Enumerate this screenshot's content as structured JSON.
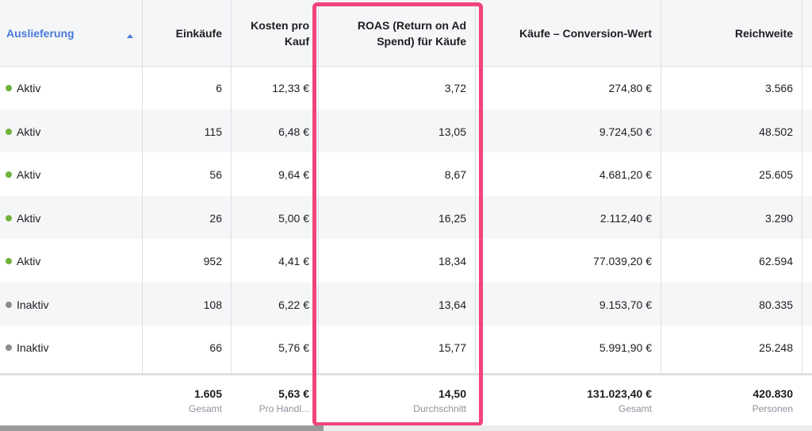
{
  "colors": {
    "active": "#6fb23a",
    "inactive": "#8d8d8d",
    "highlight": "#f0457a",
    "link": "#4a7ad8"
  },
  "headers": {
    "delivery": "Auslieferung",
    "purchases": "Einkäufe",
    "cost_per_purchase": "Kosten pro Kauf",
    "roas": "ROAS (Return on Ad Spend) für Käufe",
    "conversion_value": "Käufe – Conversion-Wert",
    "reach": "Reichweite"
  },
  "rows": [
    {
      "status": "Aktiv",
      "purchases": "6",
      "cost": "12,33 €",
      "roas": "3,72",
      "value": "274,80 €",
      "reach": "3.566"
    },
    {
      "status": "Aktiv",
      "purchases": "115",
      "cost": "6,48 €",
      "roas": "13,05",
      "value": "9.724,50 €",
      "reach": "48.502"
    },
    {
      "status": "Aktiv",
      "purchases": "56",
      "cost": "9,64 €",
      "roas": "8,67",
      "value": "4.681,20 €",
      "reach": "25.605"
    },
    {
      "status": "Aktiv",
      "purchases": "26",
      "cost": "5,00 €",
      "roas": "16,25",
      "value": "2.112,40 €",
      "reach": "3.290"
    },
    {
      "status": "Aktiv",
      "purchases": "952",
      "cost": "4,41 €",
      "roas": "18,34",
      "value": "77.039,20 €",
      "reach": "62.594"
    },
    {
      "status": "Inaktiv",
      "purchases": "108",
      "cost": "6,22 €",
      "roas": "13,64",
      "value": "9.153,70 €",
      "reach": "80.335"
    },
    {
      "status": "Inaktiv",
      "purchases": "66",
      "cost": "5,76 €",
      "roas": "15,77",
      "value": "5.991,90 €",
      "reach": "25.248"
    }
  ],
  "totals": {
    "purchases": {
      "value": "1.605",
      "label": "Gesamt"
    },
    "cost": {
      "value": "5,63 €",
      "label": "Pro Handl..."
    },
    "roas": {
      "value": "14,50",
      "label": "Durchschnitt"
    },
    "conversion_value": {
      "value": "131.023,40 €",
      "label": "Gesamt"
    },
    "reach": {
      "value": "420.830",
      "label": "Personen"
    }
  }
}
